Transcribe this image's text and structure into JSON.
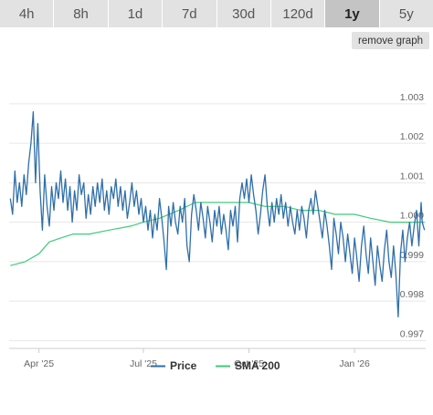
{
  "range_tabs": [
    {
      "label": "4h",
      "active": false
    },
    {
      "label": "8h",
      "active": false
    },
    {
      "label": "1d",
      "active": false
    },
    {
      "label": "7d",
      "active": false
    },
    {
      "label": "30d",
      "active": false
    },
    {
      "label": "120d",
      "active": false
    },
    {
      "label": "1y",
      "active": true
    },
    {
      "label": "5y",
      "active": false
    }
  ],
  "remove_graph_label": "remove graph",
  "colors": {
    "price": "#2f6fa8",
    "sma": "#3ecc7a",
    "grid": "#e6e6e6"
  },
  "chart_data": {
    "type": "line",
    "x_range": [
      "2025-03-06",
      "2026-03-04"
    ],
    "ylim": [
      0.9968,
      1.0042
    ],
    "y_ticks": [
      {
        "value": 0.997,
        "label": "0.997"
      },
      {
        "value": 0.998,
        "label": "0.998"
      },
      {
        "value": 0.999,
        "label": "0.999"
      },
      {
        "value": 1.0,
        "label": "1.000"
      },
      {
        "value": 1.001,
        "label": "1.001"
      },
      {
        "value": 1.002,
        "label": "1.002"
      },
      {
        "value": 1.003,
        "label": "1.003"
      }
    ],
    "x_ticks": [
      {
        "date": "2025-04-01",
        "label": "Apr '25"
      },
      {
        "date": "2025-07-01",
        "label": "Jul '25"
      },
      {
        "date": "2025-10-01",
        "label": "Oct '25"
      },
      {
        "date": "2026-01-01",
        "label": "Jan '26"
      }
    ],
    "grid": true,
    "legend": "bottom-center",
    "series": [
      {
        "name": "Price",
        "points": [
          [
            "2025-03-07",
            1.0006
          ],
          [
            "2025-03-09",
            1.0002
          ],
          [
            "2025-03-11",
            1.0013
          ],
          [
            "2025-03-13",
            1.0005
          ],
          [
            "2025-03-15",
            1.001
          ],
          [
            "2025-03-17",
            1.0004
          ],
          [
            "2025-03-19",
            1.0012
          ],
          [
            "2025-03-21",
            1.0007
          ],
          [
            "2025-03-23",
            1.0015
          ],
          [
            "2025-03-25",
            1.002
          ],
          [
            "2025-03-27",
            1.0028
          ],
          [
            "2025-03-29",
            1.001
          ],
          [
            "2025-03-31",
            1.0025
          ],
          [
            "2025-04-02",
            1.0008
          ],
          [
            "2025-04-04",
            0.9998
          ],
          [
            "2025-04-06",
            1.0012
          ],
          [
            "2025-04-08",
            1.0004
          ],
          [
            "2025-04-10",
            0.9999
          ],
          [
            "2025-04-12",
            1.0009
          ],
          [
            "2025-04-14",
            1.0003
          ],
          [
            "2025-04-16",
            1.001
          ],
          [
            "2025-04-18",
            1.0006
          ],
          [
            "2025-04-20",
            1.0013
          ],
          [
            "2025-04-22",
            1.0005
          ],
          [
            "2025-04-24",
            1.0011
          ],
          [
            "2025-04-26",
            1.0003
          ],
          [
            "2025-04-28",
            1.0009
          ],
          [
            "2025-04-30",
            1.0
          ],
          [
            "2025-05-02",
            1.0008
          ],
          [
            "2025-05-04",
            1.0003
          ],
          [
            "2025-05-06",
            1.0012
          ],
          [
            "2025-05-08",
            1.0007
          ],
          [
            "2025-05-10",
            1.001
          ],
          [
            "2025-05-12",
            1.0001
          ],
          [
            "2025-05-14",
            1.0007
          ],
          [
            "2025-05-16",
            1.0002
          ],
          [
            "2025-05-18",
            1.0009
          ],
          [
            "2025-05-20",
            1.0004
          ],
          [
            "2025-05-22",
            1.001
          ],
          [
            "2025-05-24",
            1.0005
          ],
          [
            "2025-05-26",
            1.0011
          ],
          [
            "2025-05-28",
            1.0003
          ],
          [
            "2025-05-30",
            1.0008
          ],
          [
            "2025-06-01",
            1.0002
          ],
          [
            "2025-06-03",
            1.0009
          ],
          [
            "2025-06-05",
            1.0006
          ],
          [
            "2025-06-07",
            1.0011
          ],
          [
            "2025-06-09",
            1.0004
          ],
          [
            "2025-06-11",
            1.0009
          ],
          [
            "2025-06-13",
            1.0003
          ],
          [
            "2025-06-15",
            1.0008
          ],
          [
            "2025-06-17",
            1.0001
          ],
          [
            "2025-06-19",
            1.0005
          ],
          [
            "2025-06-21",
            1.001
          ],
          [
            "2025-06-23",
            1.0004
          ],
          [
            "2025-06-25",
            1.0008
          ],
          [
            "2025-06-27",
            1.0002
          ],
          [
            "2025-06-29",
            1.0006
          ],
          [
            "2025-07-01",
            1.0
          ],
          [
            "2025-07-03",
            1.0004
          ],
          [
            "2025-07-05",
            0.9998
          ],
          [
            "2025-07-07",
            1.0003
          ],
          [
            "2025-07-09",
            0.9996
          ],
          [
            "2025-07-11",
            1.0002
          ],
          [
            "2025-07-13",
            0.9998
          ],
          [
            "2025-07-15",
            1.0006
          ],
          [
            "2025-07-17",
            1.0001
          ],
          [
            "2025-07-19",
            0.9995
          ],
          [
            "2025-07-21",
            0.9988
          ],
          [
            "2025-07-23",
            1.0004
          ],
          [
            "2025-07-25",
            0.9999
          ],
          [
            "2025-07-27",
            1.0005
          ],
          [
            "2025-07-29",
            1.0
          ],
          [
            "2025-07-31",
            0.9997
          ],
          [
            "2025-08-02",
            1.0004
          ],
          [
            "2025-08-04",
            1.0
          ],
          [
            "2025-08-06",
            1.0006
          ],
          [
            "2025-08-08",
            0.9994
          ],
          [
            "2025-08-10",
            0.999
          ],
          [
            "2025-08-12",
            1.0002
          ],
          [
            "2025-08-14",
            1.0007
          ],
          [
            "2025-08-16",
            1.0003
          ],
          [
            "2025-08-18",
            0.9998
          ],
          [
            "2025-08-20",
            1.0005
          ],
          [
            "2025-08-22",
            1.0001
          ],
          [
            "2025-08-24",
            0.9996
          ],
          [
            "2025-08-26",
            1.0004
          ],
          [
            "2025-08-28",
            1.0
          ],
          [
            "2025-08-30",
            0.9995
          ],
          [
            "2025-09-01",
            1.0003
          ],
          [
            "2025-09-03",
            0.9999
          ],
          [
            "2025-09-05",
            1.0004
          ],
          [
            "2025-09-07",
            0.9997
          ],
          [
            "2025-09-09",
            1.0002
          ],
          [
            "2025-09-11",
            0.9998
          ],
          [
            "2025-09-13",
            0.9993
          ],
          [
            "2025-09-15",
            1.0003
          ],
          [
            "2025-09-17",
            0.9999
          ],
          [
            "2025-09-19",
            1.0004
          ],
          [
            "2025-09-21",
            0.9995
          ],
          [
            "2025-09-23",
            1.0006
          ],
          [
            "2025-09-25",
            1.001
          ],
          [
            "2025-09-27",
            1.0006
          ],
          [
            "2025-09-29",
            1.0011
          ],
          [
            "2025-10-01",
            1.0005
          ],
          [
            "2025-10-03",
            1.0012
          ],
          [
            "2025-10-05",
            1.0007
          ],
          [
            "2025-10-07",
            1.0003
          ],
          [
            "2025-10-09",
            0.9997
          ],
          [
            "2025-10-11",
            1.0002
          ],
          [
            "2025-10-13",
            1.0008
          ],
          [
            "2025-10-15",
            1.0012
          ],
          [
            "2025-10-17",
            1.0004
          ],
          [
            "2025-10-19",
            0.9999
          ],
          [
            "2025-10-21",
            1.0005
          ],
          [
            "2025-10-23",
            1.0
          ],
          [
            "2025-10-25",
            1.0006
          ],
          [
            "2025-10-27",
            1.0002
          ],
          [
            "2025-10-29",
            1.0007
          ],
          [
            "2025-10-31",
            1.0001
          ],
          [
            "2025-11-02",
            1.0005
          ],
          [
            "2025-11-04",
            0.9999
          ],
          [
            "2025-11-06",
            1.0004
          ],
          [
            "2025-11-08",
            1.0
          ],
          [
            "2025-11-10",
            0.9997
          ],
          [
            "2025-11-12",
            1.0003
          ],
          [
            "2025-11-14",
            0.9998
          ],
          [
            "2025-11-16",
            1.0004
          ],
          [
            "2025-11-18",
            1.0001
          ],
          [
            "2025-11-20",
            0.9996
          ],
          [
            "2025-11-22",
            1.0003
          ],
          [
            "2025-11-24",
            1.0006
          ],
          [
            "2025-11-26",
            1.0002
          ],
          [
            "2025-11-28",
            1.0008
          ],
          [
            "2025-11-30",
            1.0004
          ],
          [
            "2025-12-02",
            1.0
          ],
          [
            "2025-12-04",
            0.9996
          ],
          [
            "2025-12-06",
            1.0003
          ],
          [
            "2025-12-08",
            0.9999
          ],
          [
            "2025-12-10",
            0.9994
          ],
          [
            "2025-12-12",
            0.9988
          ],
          [
            "2025-12-14",
            1.0001
          ],
          [
            "2025-12-16",
            0.9997
          ],
          [
            "2025-12-18",
            0.9992
          ],
          [
            "2025-12-20",
            1.0
          ],
          [
            "2025-12-22",
            0.9996
          ],
          [
            "2025-12-24",
            0.999
          ],
          [
            "2025-12-26",
            0.9997
          ],
          [
            "2025-12-28",
            0.9992
          ],
          [
            "2025-12-30",
            0.9987
          ],
          [
            "2026-01-01",
            0.9996
          ],
          [
            "2026-01-03",
            0.9991
          ],
          [
            "2026-01-05",
            0.9985
          ],
          [
            "2026-01-07",
            0.9994
          ],
          [
            "2026-01-09",
            0.9999
          ],
          [
            "2026-01-11",
            0.9992
          ],
          [
            "2026-01-13",
            0.9987
          ],
          [
            "2026-01-15",
            0.9996
          ],
          [
            "2026-01-17",
            0.999
          ],
          [
            "2026-01-19",
            0.9984
          ],
          [
            "2026-01-21",
            0.9994
          ],
          [
            "2026-01-23",
            0.9989
          ],
          [
            "2026-01-25",
            0.9985
          ],
          [
            "2026-01-27",
            0.9993
          ],
          [
            "2026-01-29",
            0.9998
          ],
          [
            "2026-01-31",
            0.999
          ],
          [
            "2026-02-02",
            0.9986
          ],
          [
            "2026-02-04",
            0.9994
          ],
          [
            "2026-02-06",
            0.9987
          ],
          [
            "2026-02-08",
            0.9976
          ],
          [
            "2026-02-10",
            0.9992
          ],
          [
            "2026-02-12",
            0.9998
          ],
          [
            "2026-02-14",
            0.999
          ],
          [
            "2026-02-16",
            0.9996
          ],
          [
            "2026-02-18",
            1.0
          ],
          [
            "2026-02-20",
            0.9994
          ],
          [
            "2026-02-22",
            0.9999
          ],
          [
            "2026-02-24",
            1.0003
          ],
          [
            "2026-02-26",
            0.9994
          ],
          [
            "2026-02-28",
            1.0005
          ],
          [
            "2026-03-01",
            1.0
          ],
          [
            "2026-03-03",
            0.9998
          ]
        ]
      },
      {
        "name": "SMA 200",
        "points": [
          [
            "2025-03-07",
            0.9989
          ],
          [
            "2025-03-20",
            0.999
          ],
          [
            "2025-04-01",
            0.9992
          ],
          [
            "2025-04-10",
            0.9995
          ],
          [
            "2025-04-20",
            0.9996
          ],
          [
            "2025-05-01",
            0.9997
          ],
          [
            "2025-05-15",
            0.9997
          ],
          [
            "2025-06-01",
            0.9998
          ],
          [
            "2025-06-20",
            0.9999
          ],
          [
            "2025-07-01",
            1.0
          ],
          [
            "2025-07-15",
            1.0001
          ],
          [
            "2025-08-01",
            1.0003
          ],
          [
            "2025-08-15",
            1.0005
          ],
          [
            "2025-09-01",
            1.0005
          ],
          [
            "2025-09-15",
            1.0005
          ],
          [
            "2025-10-01",
            1.0005
          ],
          [
            "2025-10-15",
            1.0004
          ],
          [
            "2025-11-01",
            1.0004
          ],
          [
            "2025-11-15",
            1.0003
          ],
          [
            "2025-12-01",
            1.0003
          ],
          [
            "2025-12-15",
            1.0002
          ],
          [
            "2026-01-01",
            1.0002
          ],
          [
            "2026-01-15",
            1.0001
          ],
          [
            "2026-02-01",
            1.0
          ],
          [
            "2026-02-15",
            1.0
          ],
          [
            "2026-03-03",
            1.0
          ]
        ]
      }
    ]
  }
}
